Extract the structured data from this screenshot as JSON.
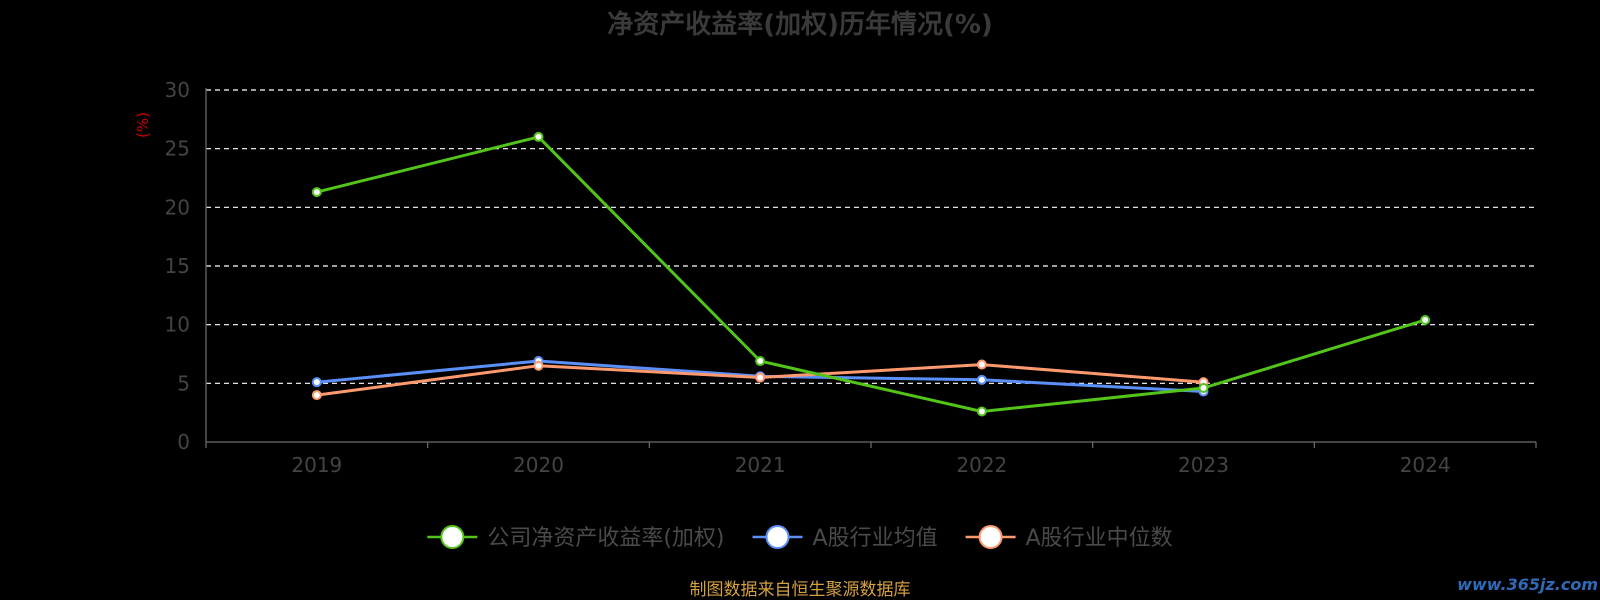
{
  "chart_data": {
    "type": "line",
    "title": "净资产收益率(加权)历年情况(%)",
    "xlabel": "",
    "ylabel": "(%)",
    "categories": [
      "2019",
      "2020",
      "2021",
      "2022",
      "2023",
      "2024"
    ],
    "ylim": [
      0,
      30
    ],
    "yticks": [
      "0",
      "5",
      "10",
      "15",
      "20",
      "25",
      "30"
    ],
    "grid": true,
    "legend_position": "bottom",
    "series": [
      {
        "name": "公司净资产收益率(加权)",
        "color": "#52c41a",
        "values": [
          21.3,
          26.0,
          6.9,
          2.6,
          4.6,
          10.4
        ]
      },
      {
        "name": "A股行业均值",
        "color": "#5b8ff9",
        "values": [
          5.1,
          6.9,
          5.6,
          5.3,
          4.3,
          null
        ]
      },
      {
        "name": "A股行业中位数",
        "color": "#ff9a6e",
        "values": [
          4.0,
          6.5,
          5.5,
          6.6,
          5.1,
          null
        ]
      }
    ]
  },
  "footer": {
    "source": "制图数据来自恒生聚源数据库",
    "watermark": "www.365jz.com"
  }
}
